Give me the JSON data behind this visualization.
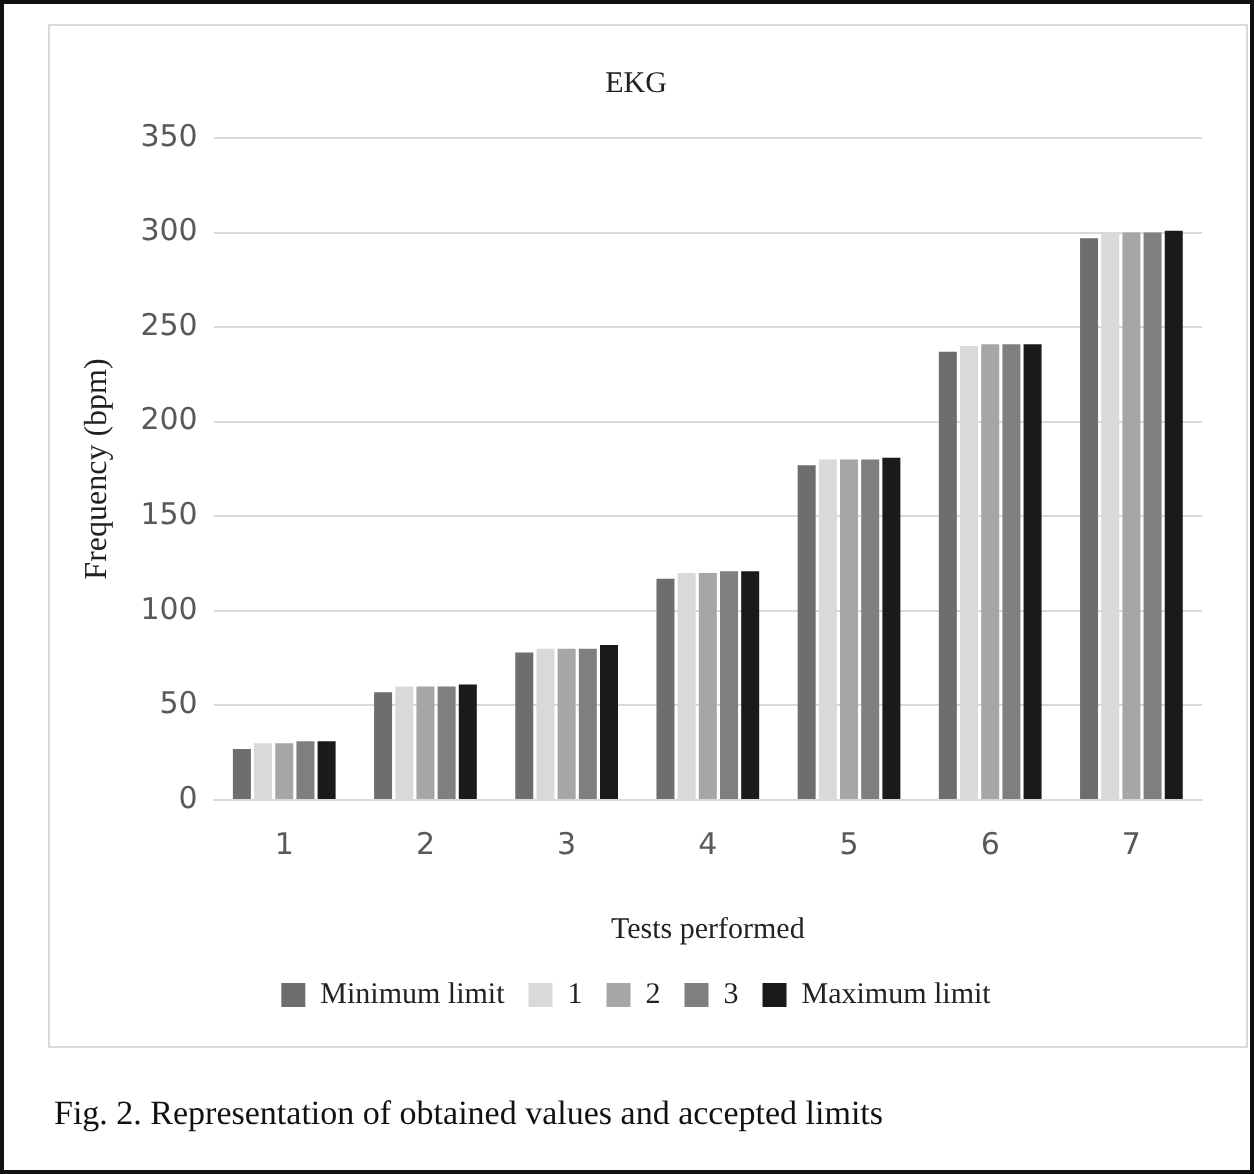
{
  "chart_data": {
    "type": "bar",
    "title": "EKG",
    "xlabel": "Tests performed",
    "ylabel": "Frequency (bpm)",
    "categories": [
      "1",
      "2",
      "3",
      "4",
      "5",
      "6",
      "7"
    ],
    "series": [
      {
        "name": "Minimum limit",
        "color": "#6e6e6e",
        "values": [
          27,
          57,
          78,
          117,
          177,
          237,
          297
        ]
      },
      {
        "name": "1",
        "color": "#d9d9d9",
        "values": [
          30,
          60,
          80,
          120,
          180,
          240,
          300
        ]
      },
      {
        "name": "2",
        "color": "#a6a6a6",
        "values": [
          30,
          60,
          80,
          120,
          180,
          241,
          300
        ]
      },
      {
        "name": "3",
        "color": "#7f7f7f",
        "values": [
          31,
          60,
          80,
          121,
          180,
          241,
          300
        ]
      },
      {
        "name": "Maximum limit",
        "color": "#1a1a1a",
        "values": [
          31,
          61,
          82,
          121,
          181,
          241,
          301
        ]
      }
    ],
    "ylim": [
      0,
      350
    ],
    "yticks": [
      0,
      50,
      100,
      150,
      200,
      250,
      300,
      350
    ],
    "grid": "y",
    "legend": "bottom",
    "annotations": [
      "Fig. 2. Representation of obtained values and accepted limits"
    ]
  }
}
